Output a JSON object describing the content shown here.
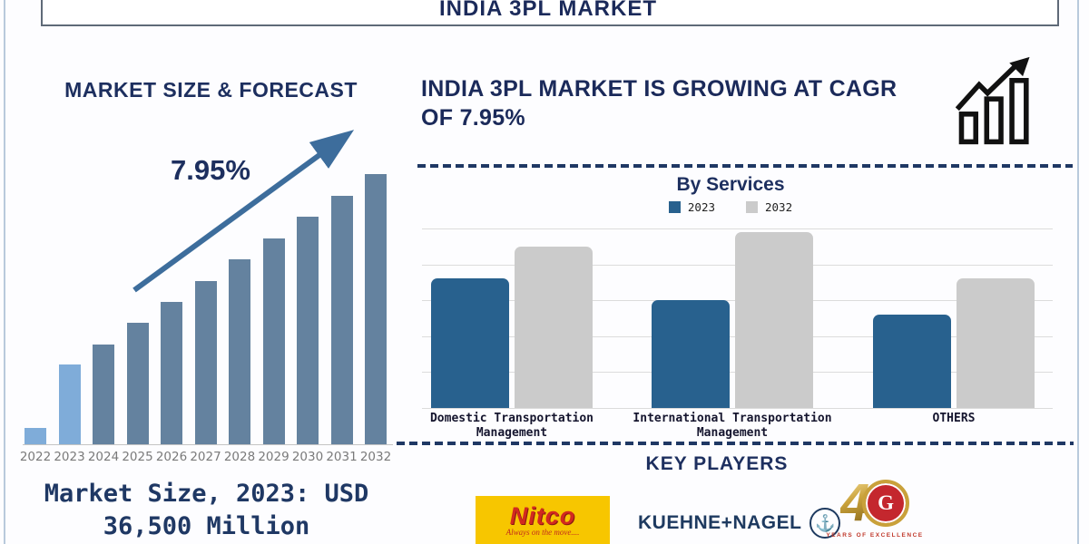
{
  "header": {
    "title": "INDIA 3PL MARKET"
  },
  "left_section": {
    "title": "MARKET SIZE & FORECAST",
    "cagr_label": "7.95%",
    "annotation_line1": "Market Size, 2023: USD",
    "annotation_line2": "36,500 Million"
  },
  "right_section": {
    "heading_line1": "INDIA 3PL MARKET IS GROWING AT CAGR",
    "heading_line2": "OF 7.95%",
    "growth_icon": "growth-bars-arrow-icon",
    "key_players_title": "KEY PLAYERS"
  },
  "key_players": {
    "nitco": {
      "name": "Nitco",
      "tagline": "Always on the move...."
    },
    "kuehne_nagel": {
      "name": "KUEHNE+NAGEL",
      "icon": "anchor-icon"
    },
    "forty_years": {
      "numeral": "4",
      "letter": "G",
      "caption": "YEARS OF EXCELLENCE"
    }
  },
  "colors": {
    "navy_text": "#1d2f5f",
    "left_bar_default": "#64829f",
    "left_bar_highlight": "#7facd9",
    "trend_arrow": "#3d6d9c",
    "right_bar_2023": "#28618e",
    "right_bar_2032": "#cbcbcb",
    "gridline": "#dcdcdc",
    "dashed_line": "#1f3864",
    "year_label": "#7a7a7a",
    "nitco_yellow": "#f7c600",
    "nitco_red": "#d2291f",
    "kn_navy": "#1e3a60",
    "gold": "#c9a13a"
  },
  "chart_data": [
    {
      "id": "market_size_forecast",
      "type": "bar",
      "title": "MARKET SIZE & FORECAST",
      "categories": [
        "2022",
        "2023",
        "2024",
        "2025",
        "2026",
        "2027",
        "2028",
        "2029",
        "2030",
        "2031",
        "2032"
      ],
      "values_usd_million": [
        7500,
        36500,
        45600,
        55600,
        65100,
        74700,
        84600,
        94200,
        104100,
        113700,
        123600
      ],
      "value_note": "Only 2023 is labeled (USD 36,500 Million); other values estimated from bar heights, no y-axis shown",
      "highlight_years": [
        "2022",
        "2023"
      ],
      "annotation": "7.95% CAGR trend arrow",
      "xlabel": "",
      "ylabel": "",
      "grid": false,
      "legend_position": "none"
    },
    {
      "id": "by_services",
      "type": "bar",
      "title": "By Services",
      "categories": [
        "Domestic Transportation Management",
        "International Transportation Management",
        "OTHERS"
      ],
      "series": [
        {
          "name": "2023",
          "color": "#28618e",
          "values": [
            36,
            30,
            26
          ]
        },
        {
          "name": "2032",
          "color": "#cbcbcb",
          "values": [
            45,
            49,
            36
          ]
        }
      ],
      "ylim": [
        0,
        50
      ],
      "value_note": "No y-axis labels shown; values are relative units read from gridlines",
      "grid": true,
      "legend_position": "top"
    }
  ]
}
